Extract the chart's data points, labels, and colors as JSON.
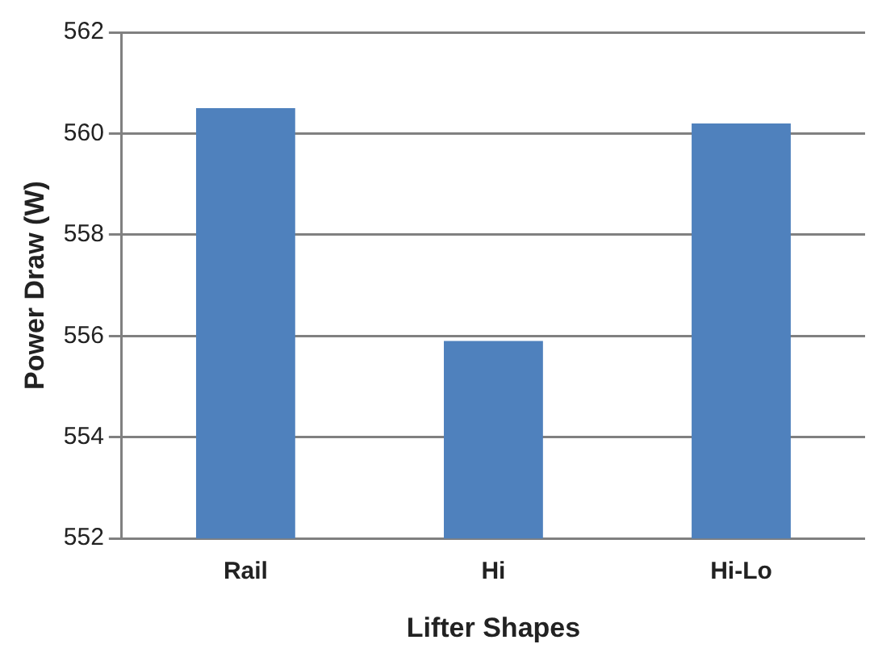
{
  "chart_data": {
    "type": "bar",
    "xlabel": "Lifter Shapes",
    "ylabel": "Power Draw (W)",
    "categories": [
      "Rail",
      "Hi",
      "Hi-Lo"
    ],
    "values": [
      560.5,
      555.9,
      560.2
    ],
    "color": "#4f81bd",
    "ylim": [
      552,
      562
    ],
    "yticks": [
      552,
      554,
      556,
      558,
      560,
      562
    ],
    "grid": "y",
    "legend": false
  }
}
